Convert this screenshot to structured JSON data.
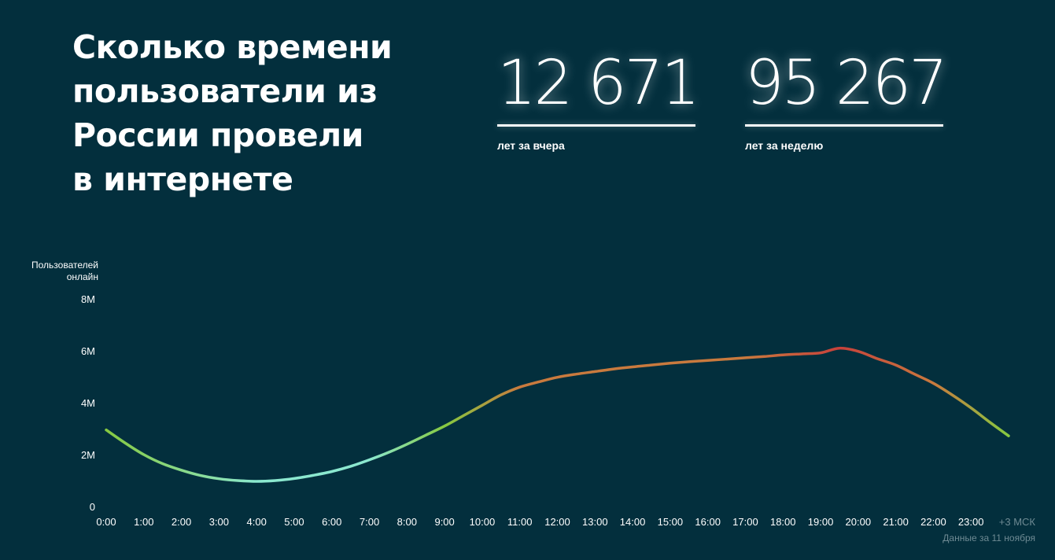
{
  "header": {
    "title_lines": [
      "Сколько времени",
      "пользователи из",
      "России провели",
      "в интернете"
    ]
  },
  "stats": {
    "yesterday": {
      "value": "12 671",
      "caption": "лет за вчера"
    },
    "week": {
      "value": "95 267",
      "caption": "лет за неделю"
    }
  },
  "chart_data": {
    "type": "line",
    "ylabel_lines": [
      "Пользователей",
      "онлайн"
    ],
    "ylim": [
      0,
      8
    ],
    "yticks": [
      {
        "value": 0,
        "label": "0"
      },
      {
        "value": 2,
        "label": "2M"
      },
      {
        "value": 4,
        "label": "4M"
      },
      {
        "value": 6,
        "label": "6M"
      },
      {
        "value": 8,
        "label": "8M"
      }
    ],
    "xlim": [
      0,
      24
    ],
    "xticks": [
      "0:00",
      "1:00",
      "2:00",
      "3:00",
      "4:00",
      "5:00",
      "6:00",
      "7:00",
      "8:00",
      "9:00",
      "10:00",
      "11:00",
      "12:00",
      "13:00",
      "14:00",
      "15:00",
      "16:00",
      "17:00",
      "18:00",
      "19:00",
      "20:00",
      "21:00",
      "22:00",
      "23:00"
    ],
    "timezone_label": "+3 МСК",
    "note": "Данные за 11 ноября",
    "grid": false,
    "series": [
      {
        "x": [
          0,
          0.5,
          1,
          1.5,
          2,
          2.5,
          3,
          3.5,
          4,
          4.5,
          5,
          5.5,
          6,
          6.5,
          7,
          7.5,
          8,
          8.5,
          9,
          9.5,
          10,
          10.5,
          11,
          11.5,
          12,
          12.5,
          13,
          13.5,
          14,
          14.5,
          15,
          15.5,
          16,
          16.5,
          17,
          17.5,
          18,
          18.5,
          19,
          19.5,
          20,
          20.5,
          21,
          21.5,
          22,
          22.5,
          23,
          23.5,
          24
        ],
        "y": [
          2.95,
          2.45,
          2.0,
          1.65,
          1.4,
          1.2,
          1.07,
          1.0,
          0.97,
          1.0,
          1.08,
          1.2,
          1.35,
          1.55,
          1.8,
          2.08,
          2.4,
          2.75,
          3.1,
          3.5,
          3.9,
          4.3,
          4.6,
          4.8,
          4.98,
          5.1,
          5.2,
          5.3,
          5.38,
          5.45,
          5.52,
          5.58,
          5.63,
          5.68,
          5.73,
          5.78,
          5.84,
          5.88,
          5.92,
          6.1,
          5.98,
          5.7,
          5.45,
          5.1,
          4.75,
          4.3,
          3.8,
          3.25,
          2.72
        ]
      }
    ],
    "colors": {
      "low": "#8be8cf",
      "mid": "#86c941",
      "high": "#c7413b",
      "orange": "#c97a3e"
    }
  }
}
